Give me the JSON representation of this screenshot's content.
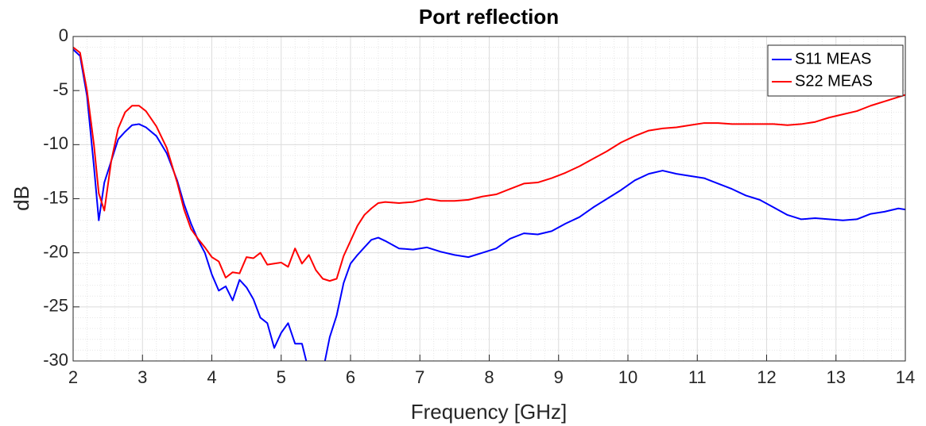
{
  "chart_data": {
    "type": "line",
    "title": "Port reflection",
    "xlabel": "Frequency [GHz]",
    "ylabel": "dB",
    "xlim": [
      2,
      14
    ],
    "xticks": [
      2,
      3,
      4,
      5,
      6,
      7,
      8,
      9,
      10,
      11,
      12,
      13,
      14
    ],
    "ylim": [
      -30,
      0
    ],
    "yticks": [
      -30,
      -25,
      -20,
      -15,
      -10,
      -5,
      0
    ],
    "grid": true,
    "legend": "northeast",
    "x": [
      2.0,
      2.1,
      2.2,
      2.3,
      2.37,
      2.45,
      2.55,
      2.65,
      2.75,
      2.85,
      2.95,
      3.05,
      3.2,
      3.35,
      3.5,
      3.6,
      3.7,
      3.8,
      3.9,
      4.0,
      4.1,
      4.2,
      4.3,
      4.4,
      4.5,
      4.6,
      4.7,
      4.8,
      4.9,
      5.0,
      5.1,
      5.2,
      5.3,
      5.4,
      5.5,
      5.6,
      5.7,
      5.8,
      5.9,
      6.0,
      6.1,
      6.2,
      6.3,
      6.4,
      6.5,
      6.7,
      6.9,
      7.1,
      7.3,
      7.5,
      7.7,
      7.9,
      8.1,
      8.3,
      8.5,
      8.7,
      8.9,
      9.1,
      9.3,
      9.5,
      9.7,
      9.9,
      10.1,
      10.3,
      10.5,
      10.7,
      10.9,
      11.1,
      11.3,
      11.5,
      11.7,
      11.9,
      12.1,
      12.3,
      12.5,
      12.7,
      12.9,
      13.1,
      13.3,
      13.5,
      13.7,
      13.9,
      14.0
    ],
    "series": [
      {
        "name": "S11 MEAS",
        "color": "#0000ff",
        "values": [
          -1.2,
          -1.8,
          -5.5,
          -12,
          -17,
          -13.5,
          -11.5,
          -9.5,
          -8.8,
          -8.2,
          -8.1,
          -8.4,
          -9.2,
          -10.8,
          -13.3,
          -15.5,
          -17.3,
          -18.8,
          -20,
          -22,
          -23.5,
          -23.1,
          -24.4,
          -22.5,
          -23.2,
          -24.3,
          -26,
          -26.5,
          -28.8,
          -27.4,
          -26.5,
          -28.4,
          -28.4,
          -31,
          -31.5,
          -31,
          -27.8,
          -25.8,
          -22.8,
          -21,
          -20.2,
          -19.5,
          -18.8,
          -18.6,
          -18.9,
          -19.6,
          -19.7,
          -19.5,
          -19.9,
          -20.2,
          -20.4,
          -20.0,
          -19.6,
          -18.7,
          -18.2,
          -18.3,
          -18.0,
          -17.3,
          -16.7,
          -15.8,
          -15.0,
          -14.2,
          -13.3,
          -12.7,
          -12.4,
          -12.7,
          -12.9,
          -13.1,
          -13.6,
          -14.1,
          -14.7,
          -15.1,
          -15.8,
          -16.5,
          -16.9,
          -16.8,
          -16.9,
          -17.0,
          -16.9,
          -16.4,
          -16.2,
          -15.9,
          -16.0
        ]
      },
      {
        "name": "S22 MEAS",
        "color": "#ff0000",
        "values": [
          -1.0,
          -1.5,
          -5,
          -10,
          -14.5,
          -16.1,
          -11.5,
          -8.5,
          -7.0,
          -6.4,
          -6.4,
          -6.9,
          -8.3,
          -10.3,
          -13.5,
          -16.0,
          -17.8,
          -18.7,
          -19.5,
          -20.4,
          -20.8,
          -22.3,
          -21.8,
          -21.9,
          -20.4,
          -20.5,
          -20.0,
          -21.1,
          -21.0,
          -20.9,
          -21.3,
          -19.6,
          -21.0,
          -20.2,
          -21.6,
          -22.4,
          -22.6,
          -22.4,
          -20.3,
          -18.9,
          -17.5,
          -16.5,
          -15.9,
          -15.4,
          -15.3,
          -15.4,
          -15.3,
          -15.0,
          -15.2,
          -15.2,
          -15.1,
          -14.8,
          -14.6,
          -14.1,
          -13.6,
          -13.5,
          -13.1,
          -12.6,
          -12.0,
          -11.3,
          -10.6,
          -9.8,
          -9.2,
          -8.7,
          -8.5,
          -8.4,
          -8.2,
          -8.0,
          -8.0,
          -8.1,
          -8.1,
          -8.1,
          -8.1,
          -8.2,
          -8.1,
          -7.9,
          -7.5,
          -7.2,
          -6.9,
          -6.4,
          -6.0,
          -5.6,
          -5.4
        ]
      }
    ]
  }
}
